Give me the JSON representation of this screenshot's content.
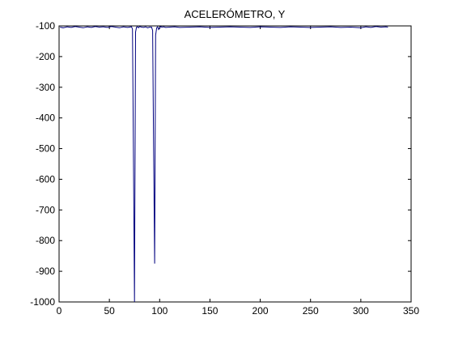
{
  "chart_data": {
    "type": "line",
    "title": "ACELERÓMETRO, Y",
    "xlabel": "",
    "ylabel": "",
    "xlim": [
      0,
      350
    ],
    "ylim": [
      -1000,
      -100
    ],
    "xticks": [
      0,
      50,
      100,
      150,
      200,
      250,
      300,
      350
    ],
    "yticks": [
      -100,
      -200,
      -300,
      -400,
      -500,
      -600,
      -700,
      -800,
      -900,
      -1000
    ],
    "xtick_labels": [
      "0",
      "50",
      "100",
      "150",
      "200",
      "250",
      "300",
      "350"
    ],
    "ytick_labels": [
      "-100",
      "-200",
      "-300",
      "-400",
      "-500",
      "-600",
      "-700",
      "-800",
      "-900",
      "-1000"
    ],
    "grid": false,
    "line_color": "#00007f",
    "series": [
      {
        "x": [
          1,
          4,
          8,
          12,
          16,
          20,
          24,
          28,
          32,
          36,
          40,
          44,
          48,
          52,
          56,
          60,
          64,
          68,
          72,
          73,
          74,
          75,
          76,
          77,
          78,
          79,
          80,
          82,
          84,
          86,
          88,
          90,
          92,
          93,
          94,
          95,
          96,
          97,
          98,
          99,
          100,
          101,
          102,
          104,
          106,
          110,
          115,
          120,
          130,
          140,
          150,
          160,
          170,
          180,
          190,
          200,
          210,
          220,
          230,
          240,
          250,
          260,
          270,
          280,
          290,
          300,
          305,
          310,
          315,
          320,
          325,
          327
        ],
        "y": [
          -104,
          -106,
          -103,
          -105,
          -102,
          -104,
          -106,
          -103,
          -105,
          -102,
          -104,
          -103,
          -105,
          -102,
          -104,
          -106,
          -103,
          -105,
          -103,
          -110,
          -555,
          -1000,
          -120,
          -104,
          -103,
          -106,
          -102,
          -104,
          -105,
          -103,
          -106,
          -104,
          -104,
          -115,
          -495,
          -875,
          -130,
          -106,
          -103,
          -112,
          -106,
          -102,
          -104,
          -103,
          -105,
          -104,
          -103,
          -105,
          -104,
          -103,
          -105,
          -104,
          -103,
          -104,
          -105,
          -103,
          -104,
          -105,
          -103,
          -104,
          -105,
          -104,
          -103,
          -105,
          -104,
          -106,
          -103,
          -105,
          -102,
          -104,
          -103,
          -104
        ]
      }
    ]
  }
}
